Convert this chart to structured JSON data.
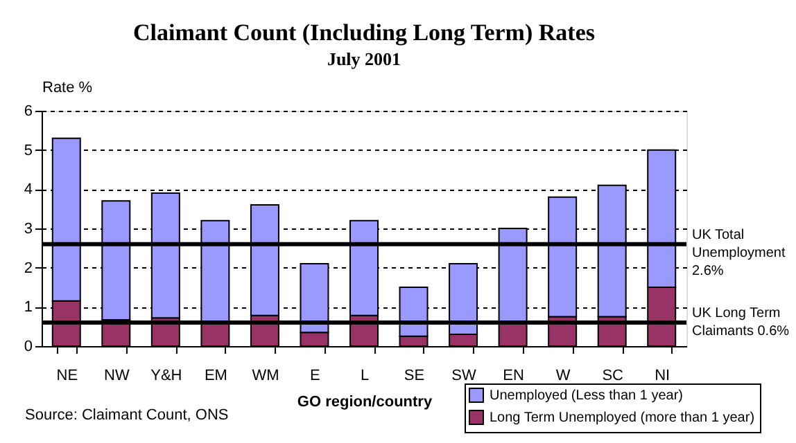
{
  "chart_data": {
    "type": "bar",
    "title": "Claimant Count (Including Long Term) Rates",
    "subtitle": "July 2001",
    "xlabel": "GO region/country",
    "ylabel": "Rate %",
    "categories": [
      "NE",
      "NW",
      "Y&H",
      "EM",
      "WM",
      "E",
      "L",
      "SE",
      "SW",
      "EN",
      "W",
      "SC",
      "NI"
    ],
    "stacked": true,
    "series": [
      {
        "name": "Long Term Unemployed (more than 1 year)",
        "color": "#993366",
        "values": [
          1.15,
          0.67,
          0.72,
          0.6,
          0.78,
          0.35,
          0.78,
          0.25,
          0.3,
          0.6,
          0.75,
          0.75,
          1.5
        ]
      },
      {
        "name": "Unemployed (Less than 1 year)",
        "color": "#9999ff",
        "values": [
          4.15,
          3.03,
          3.18,
          2.6,
          2.82,
          1.75,
          2.42,
          1.25,
          1.8,
          2.4,
          3.05,
          3.35,
          3.5
        ]
      }
    ],
    "ylim": [
      0,
      6
    ],
    "yticks": [
      0,
      1,
      2,
      3,
      4,
      5,
      6
    ],
    "grid": "y",
    "legend": "bottom right",
    "ref_lines": [
      {
        "axis": "y",
        "value": 2.6,
        "label": "UK Total Unemployment 2.6%",
        "color": "#000000"
      },
      {
        "axis": "y",
        "value": 0.6,
        "label": "UK Long Term Claimants 0.6%",
        "color": "#000000"
      }
    ],
    "annotations": [
      "Source: Claimant Count, ONS"
    ]
  }
}
